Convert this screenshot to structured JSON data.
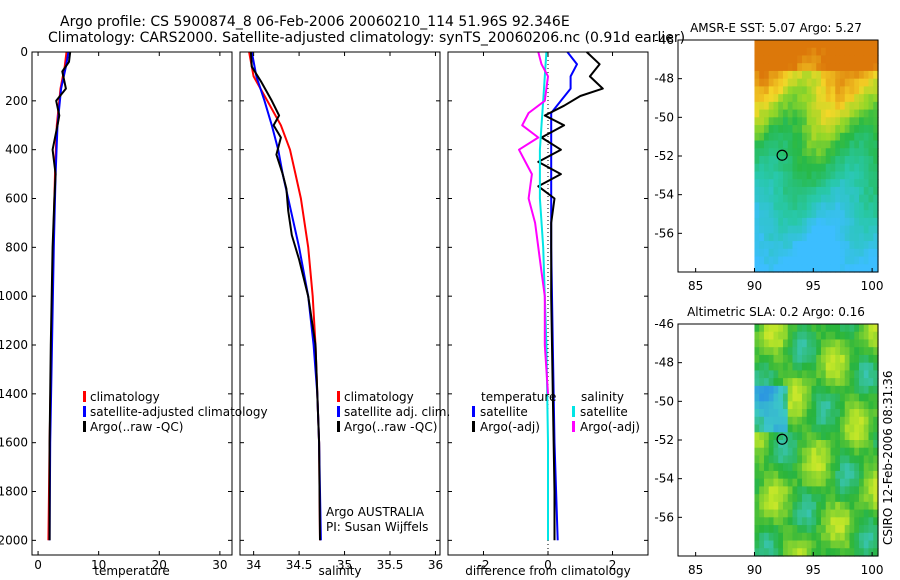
{
  "header": {
    "line1": "Argo profile: CS 5900874_8 06-Feb-2006 20060210_114 51.96S 92.346E",
    "line2": "Climatology: CARS2000. Satellite-adjusted climatology: synTS_20060206.nc (0.91d earlier)"
  },
  "side_stamp": "CSIRO 12-Feb-2006 08:31:36",
  "colors": {
    "climatology": "#ff0000",
    "satellite": "#0000ff",
    "argo": "#000000",
    "temp_adj": "#ff00ff",
    "sal_satellite": "#00e5e5"
  },
  "chart_data": [
    {
      "id": "temperature",
      "type": "line",
      "xlabel": "temperature",
      "xlim": [
        -1,
        32
      ],
      "ylim": [
        2060,
        0
      ],
      "xticks": [
        0,
        10,
        20,
        30
      ],
      "yticks": [
        0,
        200,
        400,
        600,
        800,
        1000,
        1200,
        1400,
        1600,
        1800,
        2000
      ],
      "legend": {
        "position": "lower-right",
        "entries": [
          "climatology",
          "satellite-adjusted climatology",
          "Argo(..raw -QC)"
        ]
      },
      "series": [
        {
          "name": "climatology",
          "color": "#ff0000",
          "depth": [
            0,
            60,
            150,
            300,
            500,
            800,
            1200,
            1600,
            2000
          ],
          "values": [
            4.7,
            4.4,
            3.7,
            3.1,
            2.8,
            2.5,
            2.2,
            1.9,
            1.7
          ]
        },
        {
          "name": "satellite-adjusted climatology",
          "color": "#0000ff",
          "depth": [
            0,
            60,
            150,
            300,
            500,
            800,
            1200,
            1600,
            2000
          ],
          "values": [
            5.0,
            4.6,
            3.8,
            3.2,
            2.9,
            2.6,
            2.3,
            2.0,
            1.9
          ]
        },
        {
          "name": "Argo(..raw -QC)",
          "color": "#000000",
          "depth": [
            0,
            40,
            80,
            150,
            200,
            260,
            300,
            400,
            500,
            600,
            800,
            1200,
            1600,
            2000
          ],
          "values": [
            5.3,
            5.1,
            4.0,
            4.6,
            3.0,
            3.5,
            3.2,
            2.4,
            2.9,
            2.7,
            2.4,
            2.1,
            1.9,
            1.9
          ]
        }
      ]
    },
    {
      "id": "salinity",
      "type": "line",
      "xlabel": "salinity",
      "xlim": [
        33.85,
        36.05
      ],
      "ylim": [
        2060,
        0
      ],
      "xticks": [
        34,
        34.5,
        35,
        35.5,
        36
      ],
      "tick_labels": [
        "34",
        "34.5",
        "35",
        "35.5",
        "36"
      ],
      "yticks": [
        0,
        200,
        400,
        600,
        800,
        1000,
        1200,
        1400,
        1600,
        1800,
        2000
      ],
      "legend": {
        "position": "lower-right",
        "entries": [
          "climatology",
          "satellite adj. clim.",
          "Argo(..raw -QC)"
        ]
      },
      "annotation": [
        "Argo AUSTRALIA",
        "PI: Susan Wijffels"
      ],
      "series": [
        {
          "name": "climatology",
          "color": "#ff0000",
          "depth": [
            0,
            100,
            200,
            300,
            400,
            500,
            600,
            800,
            1000,
            1200,
            1400,
            1600,
            2000
          ],
          "values": [
            33.95,
            34.0,
            34.15,
            34.3,
            34.4,
            34.46,
            34.52,
            34.6,
            34.65,
            34.68,
            34.7,
            34.72,
            34.73
          ]
        },
        {
          "name": "satellite adj. clim.",
          "color": "#0000ff",
          "depth": [
            0,
            100,
            200,
            300,
            400,
            500,
            600,
            800,
            1000,
            1200,
            1400,
            1600,
            2000
          ],
          "values": [
            33.98,
            34.03,
            34.12,
            34.2,
            34.27,
            34.32,
            34.38,
            34.5,
            34.6,
            34.66,
            34.7,
            34.72,
            34.74
          ]
        },
        {
          "name": "Argo(..raw -QC)",
          "color": "#000000",
          "depth": [
            0,
            60,
            120,
            200,
            260,
            300,
            350,
            420,
            500,
            560,
            650,
            750,
            850,
            1000,
            1200,
            1400,
            1600,
            2000
          ],
          "values": [
            33.97,
            33.98,
            34.08,
            34.2,
            34.28,
            34.22,
            34.3,
            34.25,
            34.32,
            34.36,
            34.38,
            34.42,
            34.5,
            34.6,
            34.68,
            34.7,
            34.72,
            34.73
          ]
        }
      ]
    },
    {
      "id": "difference",
      "type": "line",
      "xlabel": "difference from climatology",
      "xlim": [
        -3.1,
        3.1
      ],
      "ylim": [
        2060,
        0
      ],
      "xticks": [
        -2,
        0,
        2
      ],
      "yticks": [
        0,
        200,
        400,
        600,
        800,
        1000,
        1200,
        1400,
        1600,
        1800,
        2000
      ],
      "legend": {
        "position": "lower",
        "groups": [
          {
            "title": "temperature",
            "entries": [
              "satellite",
              "Argo(-adj)"
            ]
          },
          {
            "title": "salinity",
            "entries": [
              "satellite",
              "Argo(-adj)"
            ]
          }
        ]
      },
      "series": [
        {
          "name": "temperature satellite",
          "color": "#0000ff",
          "depth": [
            0,
            50,
            100,
            150,
            200,
            250,
            300,
            400,
            500,
            600,
            800,
            1200,
            1600,
            2000
          ],
          "values": [
            0.6,
            0.9,
            0.7,
            0.7,
            0.4,
            0.1,
            0.1,
            0.1,
            0.1,
            0.1,
            0.1,
            0.15,
            0.2,
            0.3
          ]
        },
        {
          "name": "temperature Argo(-adj)",
          "color": "#000000",
          "depth": [
            0,
            50,
            100,
            150,
            180,
            220,
            260,
            300,
            350,
            400,
            450,
            500,
            550,
            600,
            700,
            800,
            1000,
            1400,
            1800,
            2000
          ],
          "values": [
            1.2,
            1.6,
            1.3,
            1.7,
            1.0,
            0.5,
            -0.1,
            0.5,
            -0.2,
            0.4,
            -0.3,
            0.4,
            -0.3,
            0.2,
            0.1,
            0.1,
            0.1,
            0.15,
            0.2,
            0.2
          ]
        },
        {
          "name": "salinity satellite",
          "color": "#00e5e5",
          "depth": [
            0,
            100,
            200,
            300,
            400,
            600,
            800,
            1200,
            1600,
            2000
          ],
          "values": [
            -0.05,
            -0.1,
            -0.15,
            -0.2,
            -0.25,
            -0.25,
            -0.15,
            -0.05,
            0.0,
            0.0
          ]
        },
        {
          "name": "salinity Argo(-adj)",
          "color": "#ff00ff",
          "depth": [
            0,
            50,
            100,
            200,
            250,
            300,
            350,
            400,
            450,
            500,
            600,
            700,
            800,
            900,
            1000,
            1200,
            1400
          ],
          "values": [
            -0.3,
            -0.2,
            0.0,
            -0.1,
            -0.6,
            -0.8,
            -0.3,
            -0.9,
            -0.7,
            -0.5,
            -0.6,
            -0.4,
            -0.3,
            -0.2,
            -0.1,
            -0.1,
            0.0
          ]
        }
      ]
    },
    {
      "id": "sst_map",
      "type": "heatmap",
      "title": "AMSR-E SST: 5.07 Argo: 5.27",
      "xlim": [
        83.5,
        100.5
      ],
      "ylim": [
        -58,
        -46
      ],
      "xticks": [
        85,
        90,
        95,
        100
      ],
      "yticks": [
        -46,
        -48,
        -50,
        -52,
        -54,
        -56
      ],
      "data_lon_range": [
        90,
        100.5
      ],
      "marker": {
        "lon": 92.35,
        "lat": -51.96
      }
    },
    {
      "id": "sla_map",
      "type": "heatmap",
      "title": "Altimetric SLA: 0.2 Argo: 0.16",
      "xlim": [
        83.5,
        100.5
      ],
      "ylim": [
        -58,
        -46
      ],
      "xticks": [
        85,
        90,
        95,
        100
      ],
      "yticks": [
        -46,
        -48,
        -50,
        -52,
        -54,
        -56
      ],
      "data_lon_range": [
        90,
        100.5
      ],
      "marker": {
        "lon": 92.35,
        "lat": -51.96
      }
    }
  ]
}
